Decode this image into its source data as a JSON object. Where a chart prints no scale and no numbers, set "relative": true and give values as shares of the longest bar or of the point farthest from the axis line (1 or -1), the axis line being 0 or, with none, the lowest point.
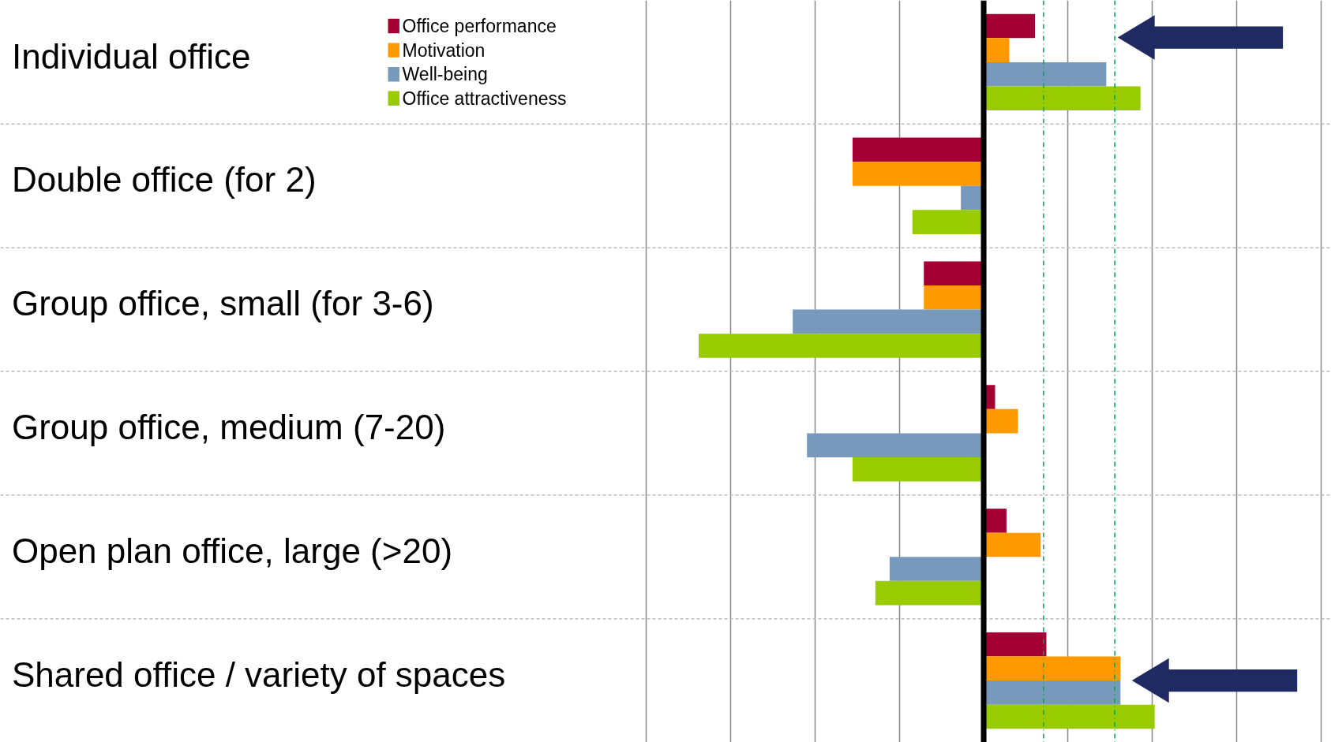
{
  "chart_data": {
    "type": "bar",
    "orientation": "horizontal",
    "relative": true,
    "grid": "x",
    "categories": [
      "Individual office",
      "Double office (for 2)",
      "Group office, small (for 3-6)",
      "Group office, medium (7-20)",
      "Open plan office, large (>20)",
      "Shared office / variety of spaces"
    ],
    "series": [
      {
        "name": "Office performance",
        "color": "#a50034",
        "values": [
          0.18,
          -0.46,
          -0.21,
          0.04,
          0.08,
          0.22
        ]
      },
      {
        "name": "Motivation",
        "color": "#ff9900",
        "values": [
          0.09,
          -0.46,
          -0.21,
          0.12,
          0.2,
          0.48
        ]
      },
      {
        "name": "Well-being",
        "color": "#7799bb",
        "values": [
          0.43,
          -0.08,
          -0.67,
          -0.62,
          -0.33,
          0.48
        ]
      },
      {
        "name": "Office attractiveness",
        "color": "#99cc00",
        "values": [
          0.55,
          -0.25,
          -1,
          -0.46,
          -0.38,
          0.6
        ]
      }
    ],
    "legend": "top",
    "ref_lines": [
      {
        "axis": "x",
        "value": 0.21,
        "color": "#00a651",
        "line_style": "dashed"
      },
      {
        "axis": "x",
        "value": 0.46,
        "color": "#00a651",
        "line_style": "dashed"
      }
    ]
  }
}
